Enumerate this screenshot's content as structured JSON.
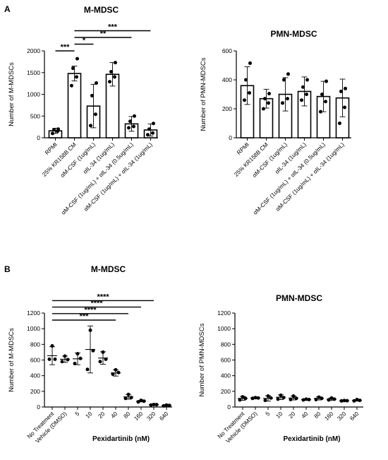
{
  "panel_labels": {
    "a": "A",
    "b": "B"
  },
  "chart_data": [
    {
      "id": "a1",
      "type": "bar",
      "title": "M-MDSC",
      "ylabel": "Number of M-MDSCs",
      "xlabel": "",
      "ylim": [
        0,
        2000
      ],
      "yticks": [
        "0",
        "500",
        "1000",
        "1500",
        "2000"
      ],
      "grid": false,
      "categories": [
        "RPMI",
        "25% KR158B CM",
        "αM-CSF (1ug/mL)",
        "αIL-34 (1ug/mL)",
        "αM-CSF (1ug/mL) + αIL-34 (0.5ug/mL)",
        "αM-CSF (1ug/mL) + αIL-34 (1ug/mL)"
      ],
      "means": [
        160,
        1480,
        730,
        1460,
        320,
        180
      ],
      "sd": [
        60,
        170,
        500,
        270,
        170,
        140
      ],
      "points": [
        [
          100,
          150,
          185,
          200
        ],
        [
          1200,
          1400,
          1600,
          1820
        ],
        [
          280,
          540,
          970,
          1260
        ],
        [
          1290,
          1400,
          1520,
          1730
        ],
        [
          230,
          260,
          380,
          500
        ],
        [
          70,
          110,
          200,
          330
        ]
      ],
      "significance": [
        {
          "from": 0,
          "to": 1,
          "label": "***"
        },
        {
          "from": 1,
          "to": 2,
          "label": "*"
        },
        {
          "from": 1,
          "to": 4,
          "label": "**"
        },
        {
          "from": 1,
          "to": 5,
          "label": "***"
        }
      ]
    },
    {
      "id": "a2",
      "type": "bar",
      "title": "PMN-MDSC",
      "ylabel": "Number of PMN-MDSCs",
      "xlabel": "",
      "ylim": [
        0,
        600
      ],
      "yticks": [
        "0",
        "200",
        "400",
        "600"
      ],
      "grid": false,
      "categories": [
        "RPMI",
        "25% KR158B CM",
        "αM-CSF (1ug/mL)",
        "αIL-34 (1ug/mL)",
        "αM-CSF (1ug/mL) + αIL-34 (0.5ug/mL)",
        "αM-CSF (1ug/mL) + αIL-34 (1ug/mL)"
      ],
      "means": [
        360,
        270,
        300,
        320,
        285,
        275
      ],
      "sd": [
        130,
        65,
        115,
        100,
        105,
        130
      ],
      "points": [
        [
          260,
          310,
          400,
          515
        ],
        [
          200,
          240,
          270,
          305
        ],
        [
          240,
          270,
          400,
          440
        ],
        [
          260,
          300,
          350,
          400
        ],
        [
          180,
          250,
          300,
          390
        ],
        [
          100,
          210,
          320,
          340
        ]
      ],
      "significance": []
    },
    {
      "id": "b1",
      "type": "scatter",
      "title": "M-MDSC",
      "ylabel": "Number of M-MDSCs",
      "xlabel": "Pexidartinib (nM)",
      "ylim": [
        0,
        1200
      ],
      "yticks": [
        "0",
        "200",
        "400",
        "600",
        "800",
        "1000",
        "1200"
      ],
      "grid": false,
      "categories": [
        "No Treatment",
        "Vehicle (DMSO)",
        "5",
        "10",
        "20",
        "40",
        "80",
        "160",
        "320",
        "640"
      ],
      "means": [
        655,
        610,
        615,
        735,
        625,
        435,
        130,
        75,
        30,
        20
      ],
      "sd": [
        115,
        40,
        75,
        300,
        80,
        40,
        30,
        10,
        5,
        5
      ],
      "points": [
        [
          610,
          610,
          780
        ],
        [
          580,
          605,
          650
        ],
        [
          555,
          620,
          680
        ],
        [
          480,
          720,
          980
        ],
        [
          580,
          610,
          700
        ],
        [
          420,
          440,
          475
        ],
        [
          110,
          120,
          160
        ],
        [
          65,
          75,
          85
        ],
        [
          25,
          30,
          32
        ],
        [
          15,
          20,
          25
        ]
      ],
      "significance": [
        {
          "from": 0,
          "to": 5,
          "label": "***"
        },
        {
          "from": 0,
          "to": 6,
          "label": "****"
        },
        {
          "from": 0,
          "to": 7,
          "label": "****"
        },
        {
          "from": 0,
          "to": 8,
          "label": "****"
        }
      ]
    },
    {
      "id": "b2",
      "type": "scatter",
      "title": "PMN-MDSC",
      "ylabel": "Number of PMN-MDSCs",
      "xlabel": "Pexidartinib (nM)",
      "ylim": [
        0,
        1200
      ],
      "yticks": [
        "0",
        "200",
        "400",
        "600",
        "800",
        "1000",
        "1200"
      ],
      "grid": false,
      "categories": [
        "No Treatment",
        "Vehicle (DMSO)",
        "5",
        "10",
        "20",
        "40",
        "80",
        "160",
        "320",
        "640"
      ],
      "means": [
        110,
        115,
        110,
        125,
        115,
        95,
        110,
        100,
        80,
        85
      ],
      "sd": [
        25,
        10,
        35,
        30,
        25,
        10,
        20,
        15,
        5,
        10
      ],
      "points": [
        [
          90,
          110,
          130
        ],
        [
          110,
          115,
          120
        ],
        [
          85,
          115,
          140
        ],
        [
          100,
          120,
          150
        ],
        [
          95,
          110,
          140
        ],
        [
          90,
          95,
          100
        ],
        [
          95,
          110,
          125
        ],
        [
          90,
          100,
          115
        ],
        [
          78,
          80,
          82
        ],
        [
          78,
          85,
          95
        ]
      ],
      "significance": []
    }
  ]
}
